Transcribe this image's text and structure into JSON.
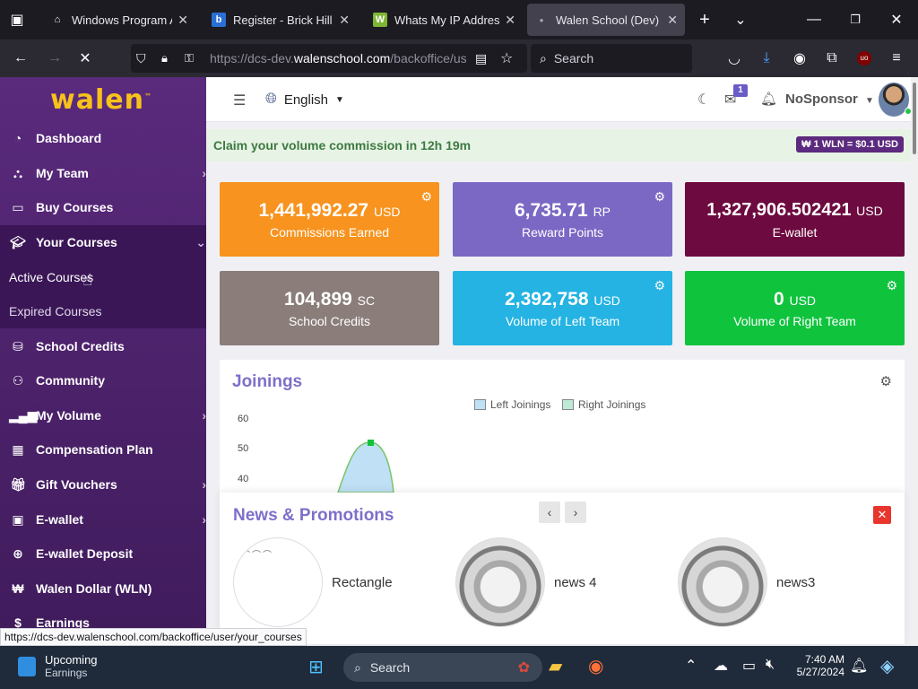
{
  "browser": {
    "tabs": [
      {
        "title": "Windows Program Arc",
        "favicon": "pillar-icon"
      },
      {
        "title": "Register - Brick Hill",
        "favicon": "brickhill-icon"
      },
      {
        "title": "Whats My IP Address -",
        "favicon": "w-icon"
      },
      {
        "title": "Walen School (Dev) | O",
        "favicon": "dot-icon",
        "active": true
      }
    ],
    "url_prefix": "https://dcs-dev.",
    "url_host": "walenschool.com",
    "url_path": "/backoffice/us",
    "search_placeholder": "Search"
  },
  "sidebar": {
    "logo": "walen",
    "items": [
      {
        "label": "Dashboard",
        "icon": "dashboard-icon"
      },
      {
        "label": "My Team",
        "icon": "team-icon",
        "chevron": true
      },
      {
        "label": "Buy Courses",
        "icon": "book-icon"
      },
      {
        "label": "Your Courses",
        "icon": "graduation-cap-icon",
        "chevron": true
      },
      {
        "label": "Active Courses"
      },
      {
        "label": "Expired Courses"
      },
      {
        "label": "School Credits",
        "icon": "coins-icon"
      },
      {
        "label": "Community",
        "icon": "users-icon"
      },
      {
        "label": "My Volume",
        "icon": "signal-icon",
        "chevron": true
      },
      {
        "label": "Compensation Plan",
        "icon": "calculator-icon"
      },
      {
        "label": "Gift Vouchers",
        "icon": "gift-icon",
        "chevron": true
      },
      {
        "label": "E-wallet",
        "icon": "wallet-icon",
        "chevron": true
      },
      {
        "label": "E-wallet Deposit",
        "icon": "deposit-icon"
      },
      {
        "label": "Walen Dollar (WLN)",
        "icon": "won-icon"
      },
      {
        "label": "Earnings",
        "icon": "dollar-icon"
      }
    ]
  },
  "topbar": {
    "language": "English",
    "notification_count": "1",
    "sponsor": "NoSponsor"
  },
  "claim": {
    "message": "Claim your volume commission in 12h 19m",
    "rate": "₩ 1 WLN = $0.1 USD"
  },
  "cards": [
    {
      "value": "1,441,992.27",
      "unit": "USD",
      "label": "Commissions Earned",
      "color": "#f7931e",
      "gear": true
    },
    {
      "value": "6,735.71",
      "unit": "RP",
      "label": "Reward Points",
      "color": "#7b68c4",
      "gear": true
    },
    {
      "value": "1,327,906.502421",
      "unit": "USD",
      "label": "E-wallet",
      "color": "#6d0a3f",
      "gear": false
    },
    {
      "value": "104,899",
      "unit": "SC",
      "label": "School Credits",
      "color": "#8a7d7a",
      "gear": false
    },
    {
      "value": "2,392,758",
      "unit": "USD",
      "label": "Volume of Left Team",
      "color": "#24b3e3",
      "gear": true
    },
    {
      "value": "0",
      "unit": "USD",
      "label": "Volume of Right Team",
      "color": "#0fc33d",
      "gear": true
    }
  ],
  "joinings": {
    "title": "Joinings",
    "legend": [
      "Left Joinings",
      "Right Joinings"
    ],
    "yticks": [
      "60",
      "50",
      "40"
    ],
    "peak_value": 52
  },
  "news": {
    "title": "News & Promotions",
    "items": [
      "Rectangle",
      "news 4",
      "news3"
    ]
  },
  "status_url": "https://dcs-dev.walenschool.com/backoffice/user/your_courses",
  "taskbar": {
    "weather_title": "Upcoming",
    "weather_sub": "Earnings",
    "search": "Search",
    "time": "7:40 AM",
    "date": "5/27/2024"
  }
}
